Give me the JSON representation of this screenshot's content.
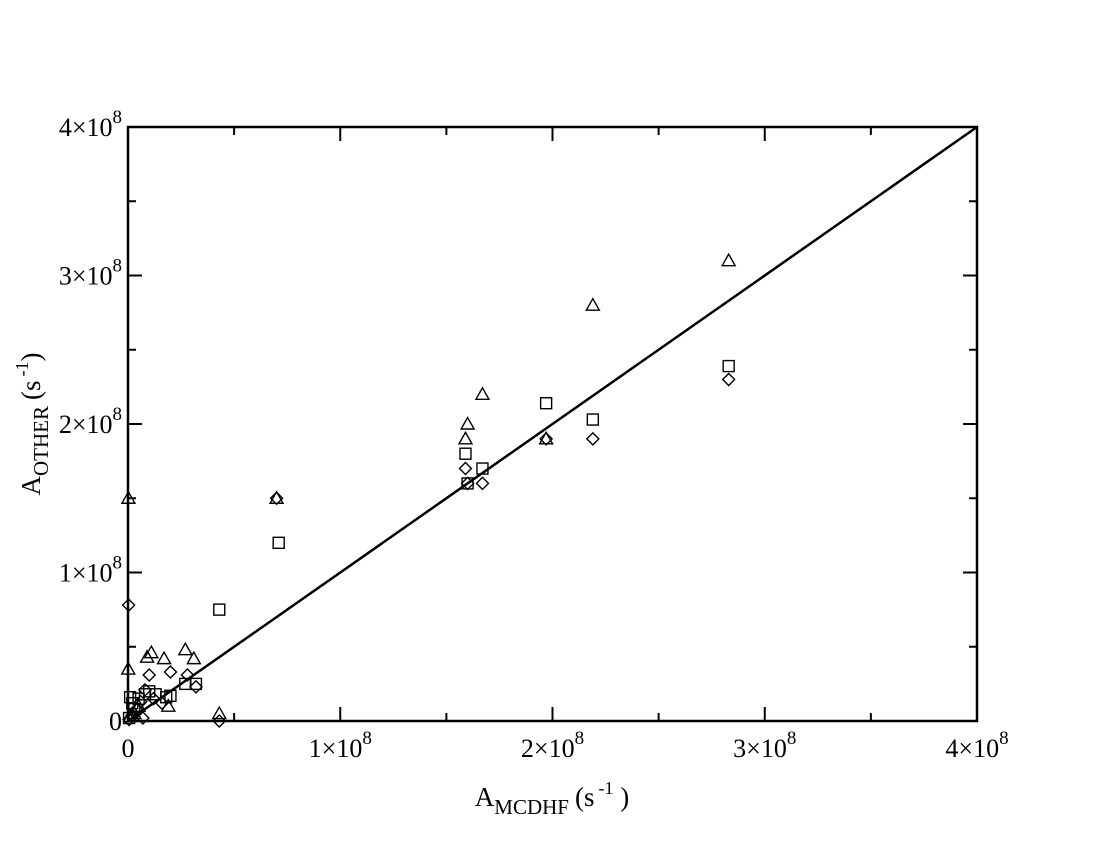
{
  "chart_data": {
    "type": "scatter",
    "xlabel": {
      "base": "A",
      "sub": "MCDHF",
      "unit_pre": "(s",
      "unit_sup": "-1",
      "unit_post": " )"
    },
    "ylabel": {
      "base": "A",
      "sub": "OTHER",
      "unit_pre": "(s",
      "unit_sup": "-1",
      "unit_post": ")"
    },
    "xlim": [
      0,
      400000000
    ],
    "ylim": [
      0,
      400000000
    ],
    "grid": false,
    "x_ticks": [
      {
        "value": 0,
        "label": "0"
      },
      {
        "value": 100000000,
        "mant": "1",
        "times": "×10",
        "exp": "8"
      },
      {
        "value": 200000000,
        "mant": "2",
        "times": "×10",
        "exp": "8"
      },
      {
        "value": 300000000,
        "mant": "3",
        "times": "×10",
        "exp": "8"
      },
      {
        "value": 400000000,
        "mant": "4",
        "times": "×10",
        "exp": "8"
      }
    ],
    "y_ticks": [
      {
        "value": 0,
        "label": "0"
      },
      {
        "value": 100000000,
        "mant": "1",
        "times": "×10",
        "exp": "8"
      },
      {
        "value": 200000000,
        "mant": "2",
        "times": "×10",
        "exp": "8"
      },
      {
        "value": 300000000,
        "mant": "3",
        "times": "×10",
        "exp": "8"
      },
      {
        "value": 400000000,
        "mant": "4",
        "times": "×10",
        "exp": "8"
      }
    ],
    "reference_line": {
      "x": [
        0,
        400000000
      ],
      "y": [
        0,
        400000000
      ]
    },
    "series": [
      {
        "marker": "triangle",
        "points": [
          [
            200000,
            150000000
          ],
          [
            100000,
            35000000
          ],
          [
            9000000,
            43000000
          ],
          [
            11000000,
            46000000
          ],
          [
            17000000,
            42000000
          ],
          [
            27000000,
            48000000
          ],
          [
            31000000,
            42000000
          ],
          [
            19000000,
            10000000
          ],
          [
            5000000,
            10000000
          ],
          [
            43000000,
            5000000
          ],
          [
            70000000,
            150000000
          ],
          [
            160000000,
            200000000
          ],
          [
            159000000,
            190000000
          ],
          [
            167000000,
            220000000
          ],
          [
            197000000,
            190000000
          ],
          [
            219000000,
            280000000
          ],
          [
            283000000,
            310000000
          ],
          [
            3000000,
            5000000
          ],
          [
            1000000,
            3000000
          ]
        ]
      },
      {
        "marker": "square",
        "points": [
          [
            43000000,
            75000000
          ],
          [
            71000000,
            120000000
          ],
          [
            159000000,
            180000000
          ],
          [
            160000000,
            160000000
          ],
          [
            167000000,
            170000000
          ],
          [
            197000000,
            214000000
          ],
          [
            219000000,
            203000000
          ],
          [
            283000000,
            239000000
          ],
          [
            1000000,
            16000000
          ],
          [
            3000000,
            8000000
          ],
          [
            5000000,
            15000000
          ],
          [
            8000000,
            18000000
          ],
          [
            10000000,
            20000000
          ],
          [
            13000000,
            18000000
          ],
          [
            18000000,
            16000000
          ],
          [
            20000000,
            17000000
          ],
          [
            27000000,
            25000000
          ],
          [
            32000000,
            25000000
          ],
          [
            500000,
            2000000
          ],
          [
            2000000,
            12000000
          ]
        ]
      },
      {
        "marker": "diamond",
        "points": [
          [
            300000,
            78000000
          ],
          [
            10000000,
            31000000
          ],
          [
            20000000,
            33000000
          ],
          [
            28000000,
            31000000
          ],
          [
            32000000,
            23000000
          ],
          [
            43000000,
            0
          ],
          [
            70000000,
            150000000
          ],
          [
            159000000,
            170000000
          ],
          [
            160000000,
            160000000
          ],
          [
            167000000,
            160000000
          ],
          [
            197000000,
            190000000
          ],
          [
            219000000,
            190000000
          ],
          [
            283000000,
            230000000
          ],
          [
            500000,
            1000000
          ],
          [
            2000000,
            4000000
          ],
          [
            4000000,
            8000000
          ],
          [
            6000000,
            13000000
          ],
          [
            8000000,
            21000000
          ],
          [
            12000000,
            15000000
          ],
          [
            16000000,
            12000000
          ],
          [
            7000000,
            2000000
          ]
        ]
      }
    ]
  }
}
